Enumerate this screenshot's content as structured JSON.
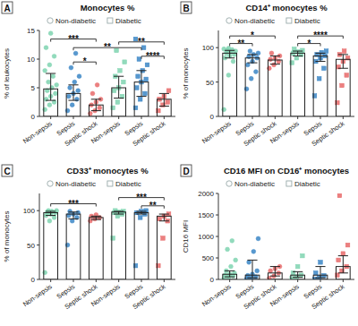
{
  "chart_data": [
    {
      "type": "bar",
      "label": "A",
      "title": "Monocytes %",
      "y_label": "% of leukocytes",
      "categories": [
        "Non-sepsis",
        "Sepsis",
        "Septic shock",
        "Non-sepsis",
        "Sepsis",
        "Septic shock"
      ],
      "colors": [
        "#7fd4b0",
        "#3b86c6",
        "#e86a6a",
        "#7fd4b0",
        "#3b86c6",
        "#e86a6a"
      ],
      "ylim": [
        0,
        15
      ],
      "yticks": [
        0,
        5,
        10,
        15
      ],
      "legend": "top",
      "series": [
        {
          "name": "Non-diabetic",
          "marker": "circle",
          "values": [
            4.8,
            4,
            2,
            null,
            null,
            null
          ],
          "error_low": [
            2.8,
            2.8,
            1,
            null,
            null,
            null
          ],
          "error_high": [
            7.5,
            5.5,
            3,
            null,
            null,
            null
          ],
          "points": [
            [
              1.2,
              2,
              2.5,
              3,
              3.5,
              4,
              4.5,
              5,
              5.5,
              6,
              7,
              8,
              9,
              10.5,
              12,
              14.5
            ],
            [
              1,
              2,
              3,
              3.5,
              4,
              4.5,
              5,
              6,
              7,
              8.5,
              11
            ],
            [
              0.5,
              1,
              1.5,
              2,
              2.5,
              3,
              4,
              5.5
            ],
            [],
            [],
            []
          ]
        },
        {
          "name": "Diabetic",
          "marker": "square",
          "values": [
            null,
            null,
            null,
            5,
            6,
            3
          ],
          "error_low": [
            null,
            null,
            null,
            3.2,
            3.5,
            1.8
          ],
          "error_high": [
            null,
            null,
            null,
            7,
            8,
            4
          ],
          "points": [
            [],
            [],
            [],
            [
              1.5,
              2.5,
              3.5,
              4.5,
              5,
              6,
              7,
              8,
              9.5,
              11.5
            ],
            [
              1.5,
              3,
              4,
              5,
              6,
              6.5,
              7,
              8,
              9,
              10,
              12,
              13.5
            ],
            [
              1,
              2,
              2.5,
              3,
              3.5,
              4.5
            ]
          ]
        }
      ],
      "annotations": [
        {
          "text": "***",
          "from": 0,
          "to": 2,
          "y": 13.5
        },
        {
          "text": "*",
          "from": 1,
          "to": 2,
          "y": 9.5
        },
        {
          "text": "**",
          "from": 1,
          "to": 4,
          "y": 12
        },
        {
          "text": "**",
          "from": 3,
          "to": 5,
          "y": 13
        },
        {
          "text": "****",
          "from": 4,
          "to": 5,
          "y": 10.5
        }
      ]
    },
    {
      "type": "bar",
      "label": "B",
      "title": "CD14⁺ monocytes %",
      "y_label": "% of monocytes",
      "categories": [
        "Non-sepsis",
        "Sepsis",
        "Septic shock",
        "Non-sepsis",
        "Sepsis",
        "Septic shock"
      ],
      "colors": [
        "#7fd4b0",
        "#3b86c6",
        "#e86a6a",
        "#7fd4b0",
        "#3b86c6",
        "#e86a6a"
      ],
      "ylim": [
        0,
        125
      ],
      "yticks": [
        0,
        50,
        100
      ],
      "legend": "top",
      "series": [
        {
          "name": "Non-diabetic",
          "marker": "circle",
          "values": [
            92,
            85,
            82,
            null,
            null,
            null
          ],
          "error_low": [
            85,
            78,
            76,
            null,
            null,
            null
          ],
          "error_high": [
            96,
            90,
            88,
            null,
            null,
            null
          ],
          "points": [
            [
              10,
              60,
              80,
              85,
              88,
              90,
              92,
              94,
              95,
              96,
              97,
              98,
              99
            ],
            [
              40,
              55,
              65,
              75,
              80,
              85,
              87,
              90,
              92,
              95
            ],
            [
              70,
              75,
              80,
              83,
              85,
              88,
              92
            ],
            [],
            [],
            []
          ]
        },
        {
          "name": "Diabetic",
          "marker": "square",
          "values": [
            null,
            null,
            null,
            92,
            88,
            83
          ],
          "error_low": [
            null,
            null,
            null,
            88,
            80,
            70
          ],
          "error_high": [
            null,
            null,
            null,
            95,
            92,
            90
          ],
          "points": [
            [],
            [],
            [],
            [
              78,
              85,
              90,
              92,
              94,
              96,
              98
            ],
            [
              30,
              55,
              70,
              80,
              85,
              88,
              90,
              93,
              95
            ],
            [
              20,
              45,
              60,
              72,
              80,
              85,
              90,
              95
            ]
          ]
        }
      ],
      "annotations": [
        {
          "text": "**",
          "from": 0,
          "to": 1,
          "y": 106
        },
        {
          "text": "*",
          "from": 0,
          "to": 2,
          "y": 117
        },
        {
          "text": "*",
          "from": 3,
          "to": 4,
          "y": 106
        },
        {
          "text": "****",
          "from": 3,
          "to": 5,
          "y": 117
        }
      ]
    },
    {
      "type": "bar",
      "label": "C",
      "title": "CD33⁺ monocytes %",
      "y_label": "% of monocytes",
      "categories": [
        "Non-sepsis",
        "Sepsis",
        "Septic shock",
        "Non-sepsis",
        "Sepsis",
        "Septic shock"
      ],
      "colors": [
        "#7fd4b0",
        "#3b86c6",
        "#e86a6a",
        "#7fd4b0",
        "#3b86c6",
        "#e86a6a"
      ],
      "ylim": [
        0,
        125
      ],
      "yticks": [
        0,
        50,
        100
      ],
      "legend": "top",
      "series": [
        {
          "name": "Non-diabetic",
          "marker": "circle",
          "values": [
            97,
            95,
            90,
            null,
            null,
            null
          ],
          "error_low": [
            93,
            88,
            87,
            null,
            null,
            null
          ],
          "error_high": [
            99,
            98,
            92,
            null,
            null,
            null
          ],
          "points": [
            [
              10,
              85,
              90,
              93,
              95,
              97,
              98,
              99,
              100,
              100
            ],
            [
              50,
              85,
              90,
              93,
              95,
              97,
              99
            ],
            [
              85,
              88,
              90,
              92,
              94
            ],
            [],
            [],
            []
          ]
        },
        {
          "name": "Diabetic",
          "marker": "square",
          "values": [
            null,
            null,
            null,
            98,
            97,
            92
          ],
          "error_low": [
            null,
            null,
            null,
            95,
            95,
            85
          ],
          "error_high": [
            null,
            null,
            null,
            99,
            99,
            95
          ],
          "points": [
            [],
            [],
            [],
            [
              60,
              92,
              95,
              97,
              98,
              99,
              100
            ],
            [
              20,
              90,
              95,
              97,
              99,
              100
            ],
            [
              20,
              60,
              85,
              88,
              92,
              95
            ]
          ]
        }
      ],
      "annotations": [
        {
          "text": "***",
          "from": 0,
          "to": 2,
          "y": 110
        },
        {
          "text": "***",
          "from": 3,
          "to": 5,
          "y": 119
        },
        {
          "text": "**",
          "from": 4,
          "to": 5,
          "y": 107
        }
      ]
    },
    {
      "type": "bar",
      "label": "D",
      "title": "CD16 MFI on CD16⁺ monocytes",
      "y_label": "CD16 MFI",
      "categories": [
        "Non-sepsis",
        "Sepsis",
        "Septic shock",
        "Non-sepsis",
        "Sepsis",
        "Septic shock"
      ],
      "colors": [
        "#7fd4b0",
        "#3b86c6",
        "#e86a6a",
        "#7fd4b0",
        "#3b86c6",
        "#e86a6a"
      ],
      "ylim": [
        0,
        2000
      ],
      "yticks": [
        0,
        500,
        1000,
        1500,
        2000
      ],
      "legend": "top",
      "series": [
        {
          "name": "Non-diabetic",
          "marker": "circle",
          "values": [
            120,
            100,
            150,
            null,
            null,
            null
          ],
          "error_low": [
            60,
            40,
            80,
            null,
            null,
            null
          ],
          "error_high": [
            200,
            450,
            300,
            null,
            null,
            null
          ],
          "points": [
            [
              20,
              50,
              80,
              100,
              120,
              150,
              200,
              300,
              450,
              700,
              900
            ],
            [
              10,
              30,
              60,
              90,
              120,
              200,
              400,
              650,
              950
            ],
            [
              30,
              80,
              150,
              200,
              250,
              300
            ],
            [],
            [],
            []
          ]
        },
        {
          "name": "Diabetic",
          "marker": "square",
          "values": [
            null,
            null,
            null,
            100,
            100,
            300
          ],
          "error_low": [
            null,
            null,
            null,
            50,
            40,
            150
          ],
          "error_high": [
            null,
            null,
            null,
            180,
            300,
            550
          ],
          "points": [
            [],
            [],
            [],
            [
              20,
              60,
              100,
              150,
              300,
              550
            ],
            [
              10,
              50,
              90,
              150,
              400
            ],
            [
              100,
              200,
              300,
              450,
              600,
              800,
              1950
            ]
          ]
        }
      ],
      "annotations": []
    }
  ]
}
